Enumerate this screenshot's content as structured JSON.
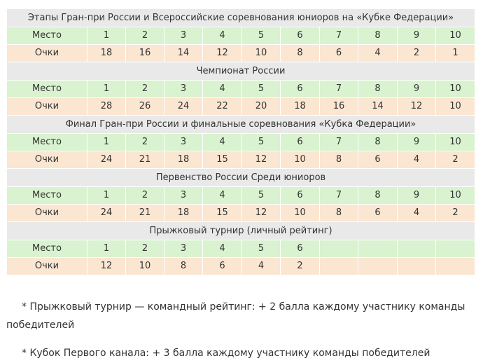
{
  "place_label": "Место",
  "points_label": "Очки",
  "sections": [
    {
      "title": "Этапы Гран-при России и Всероссийские соревнования юниоров на «Кубке Федерации»",
      "places": [
        "1",
        "2",
        "3",
        "4",
        "5",
        "6",
        "7",
        "8",
        "9",
        "10"
      ],
      "points": [
        "18",
        "16",
        "14",
        "12",
        "10",
        "8",
        "6",
        "4",
        "2",
        "1"
      ]
    },
    {
      "title": "Чемпионат России",
      "places": [
        "1",
        "2",
        "3",
        "4",
        "5",
        "6",
        "7",
        "8",
        "9",
        "10"
      ],
      "points": [
        "28",
        "26",
        "24",
        "22",
        "20",
        "18",
        "16",
        "14",
        "12",
        "10"
      ]
    },
    {
      "title": "Финал Гран-при России и финальные соревнования «Кубка Федерации»",
      "places": [
        "1",
        "2",
        "3",
        "4",
        "5",
        "6",
        "7",
        "8",
        "9",
        "10"
      ],
      "points": [
        "24",
        "21",
        "18",
        "15",
        "12",
        "10",
        "8",
        "6",
        "4",
        "2"
      ]
    },
    {
      "title": "Первенство России Среди юниоров",
      "places": [
        "1",
        "2",
        "3",
        "4",
        "5",
        "6",
        "7",
        "8",
        "9",
        "10"
      ],
      "points": [
        "24",
        "21",
        "18",
        "15",
        "12",
        "10",
        "8",
        "6",
        "4",
        "2"
      ]
    },
    {
      "title": "Прыжковый турнир (личный рейтинг)",
      "places": [
        "1",
        "2",
        "3",
        "4",
        "5",
        "6",
        "",
        "",
        "",
        ""
      ],
      "points": [
        "12",
        "10",
        "8",
        "6",
        "4",
        "2",
        "",
        "",
        "",
        ""
      ]
    }
  ],
  "notes": [
    "* Прыжковый турнир — командный рейтинг: + 2 балла каждому участнику команды победителей",
    "* Кубок Первого канала: + 3 балла каждому участнику команды победителей"
  ]
}
